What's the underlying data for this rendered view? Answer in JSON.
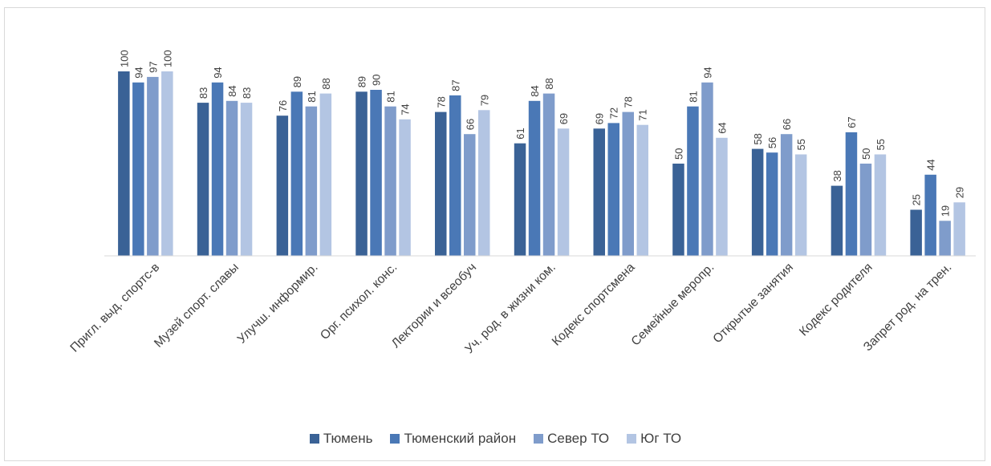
{
  "chart_data": {
    "type": "bar",
    "title": "",
    "xlabel": "",
    "ylabel": "",
    "ylim": [
      0,
      110
    ],
    "grid": false,
    "legend_position": "bottom",
    "categories": [
      "Пригл. выд. спортс-в",
      "Музей спорт. славы",
      "Улучш. информир.",
      "Орг. психол. конс.",
      "Лектории и всеобуч",
      "Уч. род. в жизни ком.",
      "Кодекс спортсмена",
      "Семейные меропр.",
      "Открытые занятия",
      "Кодекс родителя",
      "Запрет род. на трен."
    ],
    "series": [
      {
        "name": "Тюмень",
        "color": "#3a6296",
        "values": [
          100,
          83,
          76,
          89,
          78,
          61,
          69,
          50,
          58,
          38,
          25
        ]
      },
      {
        "name": "Тюменский район",
        "color": "#4a78b6",
        "values": [
          94,
          94,
          89,
          90,
          87,
          84,
          72,
          81,
          56,
          67,
          44
        ]
      },
      {
        "name": "Север ТО",
        "color": "#7f9ccb",
        "values": [
          97,
          84,
          81,
          81,
          66,
          88,
          78,
          94,
          66,
          50,
          19
        ]
      },
      {
        "name": "Юг ТО",
        "color": "#b3c5e3",
        "values": [
          100,
          83,
          88,
          74,
          79,
          69,
          71,
          64,
          55,
          55,
          29
        ]
      }
    ]
  }
}
